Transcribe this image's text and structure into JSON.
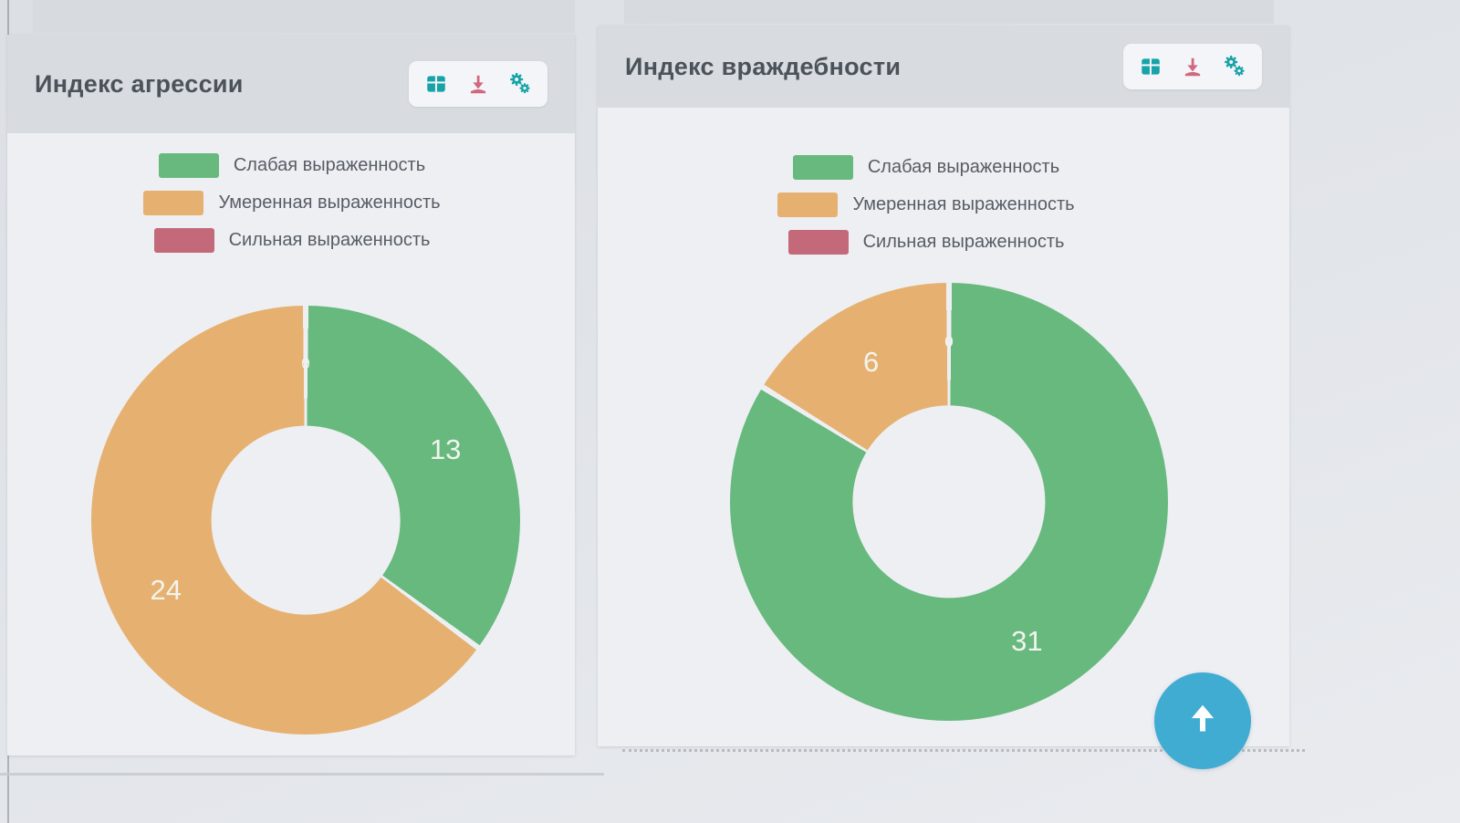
{
  "panels": [
    {
      "title": "Индекс агрессии"
    },
    {
      "title": "Индекс враждебности"
    }
  ],
  "toolbar_icons": [
    "table-icon",
    "download-icon",
    "settings-gears-icon"
  ],
  "chart_data": [
    {
      "type": "pie",
      "subtype": "donut",
      "title": "Индекс агрессии",
      "categories": [
        "Слабая выраженность",
        "Умеренная выраженность",
        "Сильная выраженность"
      ],
      "values": [
        13,
        24,
        0
      ],
      "colors": [
        "#67b97e",
        "#e6b170",
        "#c4697a"
      ],
      "legend_position": "top",
      "value_label_color": "#f2f4ef",
      "start_angle_deg": 0,
      "direction": "clockwise"
    },
    {
      "type": "pie",
      "subtype": "donut",
      "title": "Индекс враждебности",
      "categories": [
        "Слабая выраженность",
        "Умеренная выраженность",
        "Сильная выраженность"
      ],
      "values": [
        31,
        6,
        0
      ],
      "colors": [
        "#67b97e",
        "#e6b170",
        "#c4697a"
      ],
      "legend_position": "top",
      "value_label_color": "#f2f4ef",
      "start_angle_deg": 0,
      "direction": "clockwise"
    }
  ],
  "floating": {
    "scroll_to_top_icon": "arrow-up-icon",
    "scroll_to_top_color": "#41acd2"
  }
}
